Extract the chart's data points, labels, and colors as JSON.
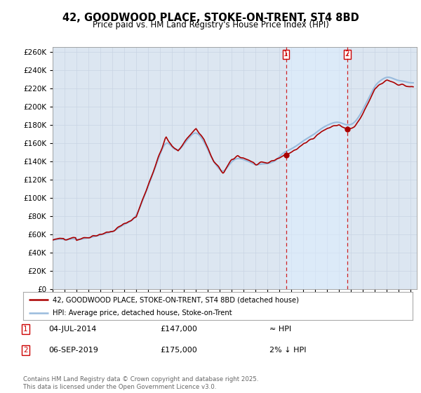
{
  "title": "42, GOODWOOD PLACE, STOKE-ON-TRENT, ST4 8BD",
  "subtitle": "Price paid vs. HM Land Registry's House Price Index (HPI)",
  "background_color": "#ffffff",
  "plot_bg_color": "#dce6f1",
  "grid_color": "#c8d4e3",
  "sale1_date": 2014.54,
  "sale1_price": 147000,
  "sale2_date": 2019.67,
  "sale2_price": 175000,
  "ylim": [
    0,
    265000
  ],
  "xlim": [
    1995.0,
    2025.5
  ],
  "legend_line1": "42, GOODWOOD PLACE, STOKE-ON-TRENT, ST4 8BD (detached house)",
  "legend_line2": "HPI: Average price, detached house, Stoke-on-Trent",
  "annotation1_date": "04-JUL-2014",
  "annotation1_price": "£147,000",
  "annotation1_hpi": "≈ HPI",
  "annotation2_date": "06-SEP-2019",
  "annotation2_price": "£175,000",
  "annotation2_hpi": "2% ↓ HPI",
  "footer": "Contains HM Land Registry data © Crown copyright and database right 2025.\nThis data is licensed under the Open Government Licence v3.0.",
  "price_line_color": "#aa0000",
  "hpi_line_color": "#99bbdd",
  "vline_color": "#cc0000",
  "shade_color": "#ddeeff",
  "shade_alpha": 0.5
}
